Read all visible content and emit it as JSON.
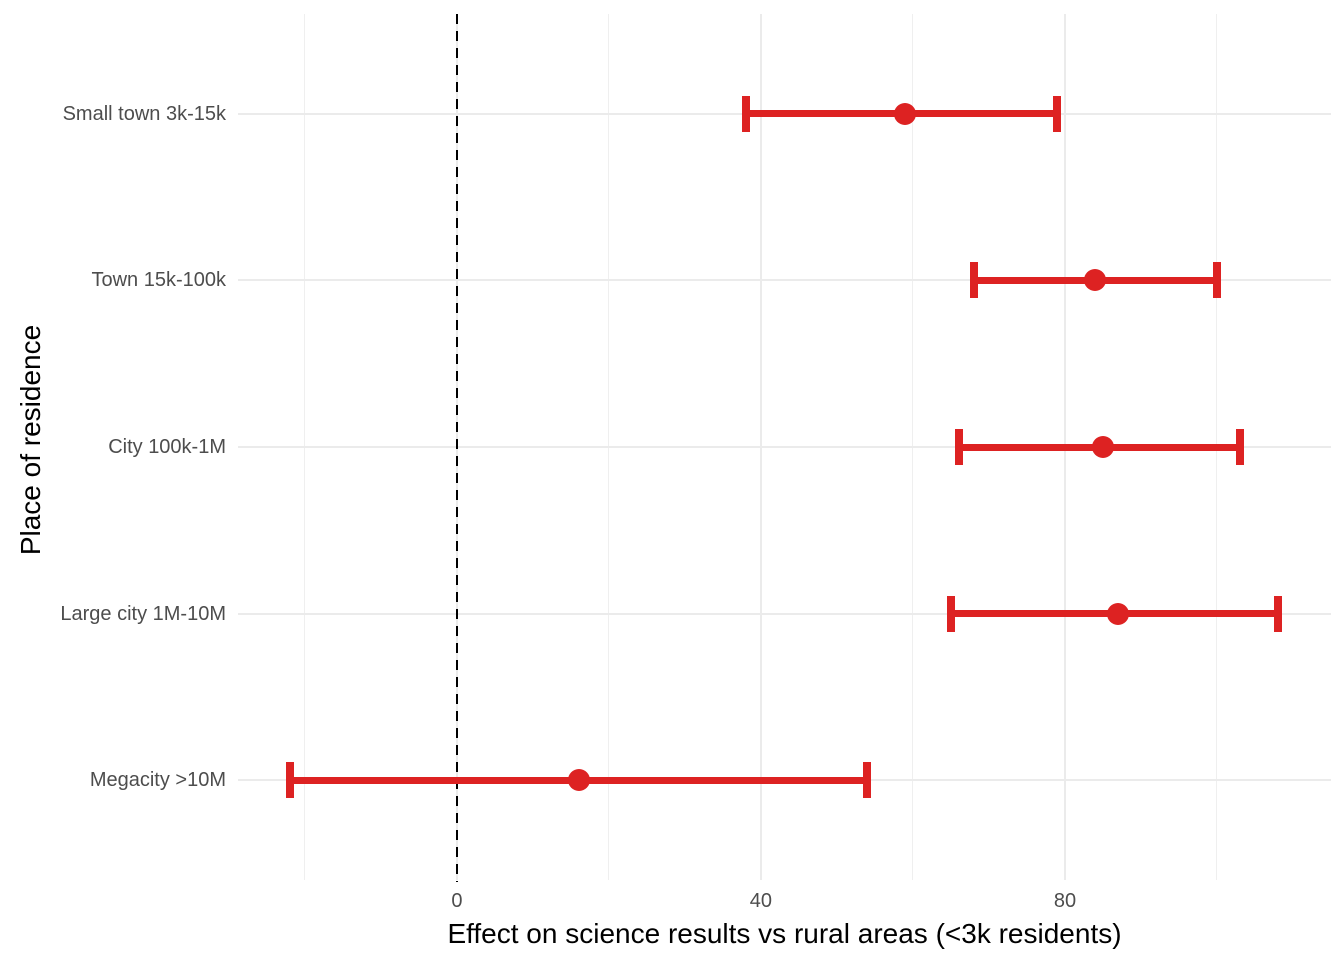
{
  "chart_data": {
    "type": "errorbar",
    "orientation": "horizontal",
    "xlabel": "Effect on science results vs rural areas (<3k residents)",
    "ylabel": "Place of residence",
    "categories": [
      "Small town 3k-15k",
      "Town 15k-100k",
      "City 100k-1M",
      "Large city 1M-10M",
      "Megacity >10M"
    ],
    "points": [
      {
        "label": "Small town 3k-15k",
        "estimate": 59,
        "ci_low": 38,
        "ci_high": 79
      },
      {
        "label": "Town 15k-100k",
        "estimate": 84,
        "ci_low": 68,
        "ci_high": 100
      },
      {
        "label": "City 100k-1M",
        "estimate": 85,
        "ci_low": 66,
        "ci_high": 103
      },
      {
        "label": "Large city 1M-10M",
        "estimate": 87,
        "ci_low": 65,
        "ci_high": 108
      },
      {
        "label": "Megacity >10M",
        "estimate": 16,
        "ci_low": -22,
        "ci_high": 54
      }
    ],
    "x_ticks": [
      0,
      40,
      80
    ],
    "x_minor_ticks": [
      -20,
      20,
      60,
      100
    ],
    "xlim": [
      -28.8,
      115
    ],
    "reference_line_x": 0,
    "grid": true,
    "legend": "none",
    "colors": {
      "errorbar": "#DD2222",
      "grid_major": "#EBEBEB",
      "grid_minor": "#EFEFEF",
      "axis_text": "#4D4D4D",
      "axis_title": "#000000",
      "reference_line": "#000000",
      "background": "#FFFFFF"
    }
  }
}
